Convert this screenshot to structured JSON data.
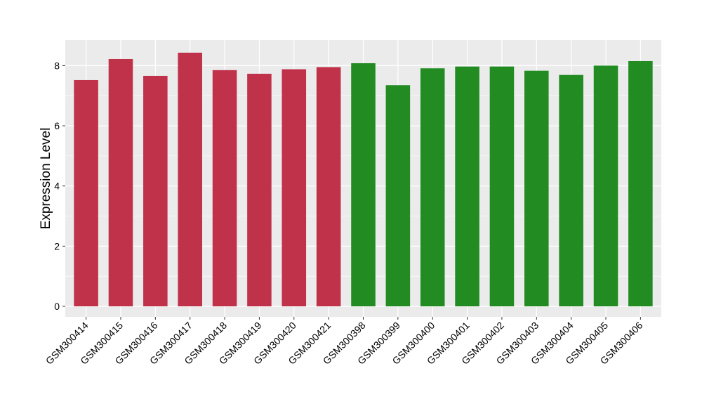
{
  "chart_data": {
    "type": "bar",
    "title": "",
    "xlabel": "",
    "ylabel": "Expression Level",
    "ylim": [
      -0.35,
      8.85
    ],
    "yticks": [
      0,
      2,
      4,
      6,
      8
    ],
    "grid": true,
    "legend": "none",
    "categories": [
      "GSM300414",
      "GSM300415",
      "GSM300416",
      "GSM300417",
      "GSM300418",
      "GSM300419",
      "GSM300420",
      "GSM300421",
      "GSM300398",
      "GSM300399",
      "GSM300400",
      "GSM300401",
      "GSM300402",
      "GSM300403",
      "GSM300404",
      "GSM300405",
      "GSM300406"
    ],
    "values": [
      7.52,
      8.22,
      7.66,
      8.43,
      7.85,
      7.73,
      7.88,
      7.95,
      8.08,
      7.35,
      7.91,
      7.97,
      7.97,
      7.83,
      7.69,
      8.0,
      8.15
    ],
    "group_index": [
      0,
      0,
      0,
      0,
      0,
      0,
      0,
      0,
      1,
      1,
      1,
      1,
      1,
      1,
      1,
      1,
      1
    ],
    "group_colors": [
      "#c0314a",
      "#228b22"
    ],
    "panel_color": "#ebebeb",
    "grid_color": "#ffffff"
  }
}
